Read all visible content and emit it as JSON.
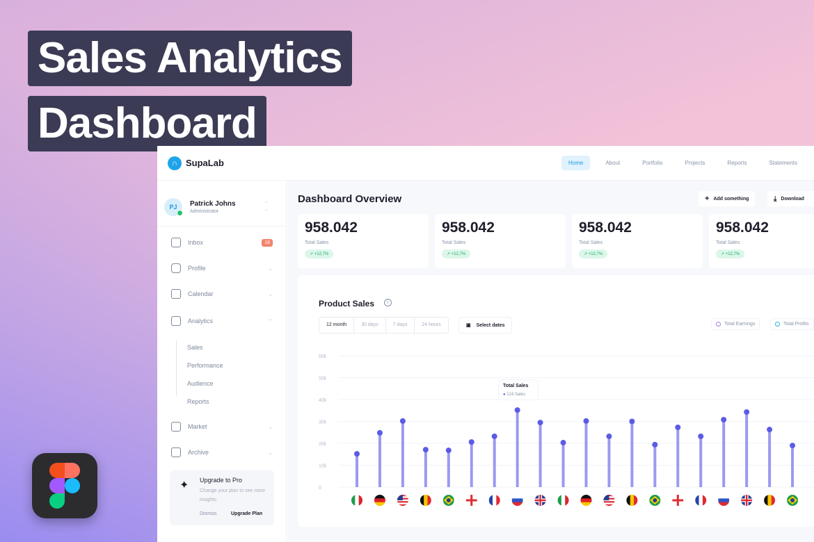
{
  "hero": {
    "line1": "Sales Analytics",
    "line2": "Dashboard"
  },
  "header": {
    "brand": "SupaLab",
    "nav": [
      "Home",
      "About",
      "Portfolio",
      "Projects",
      "Reports",
      "Statements"
    ],
    "active": "Home"
  },
  "user": {
    "initials": "PJ",
    "name": "Patrick Johns",
    "role": "Administrator",
    "status": "online"
  },
  "sidebar": {
    "items": [
      {
        "label": "Inbox",
        "icon": "inbox-icon",
        "badge": "16"
      },
      {
        "label": "Profile",
        "icon": "user-icon"
      },
      {
        "label": "Calendar",
        "icon": "calendar-icon"
      },
      {
        "label": "Analytics",
        "icon": "chart-icon",
        "expanded": true
      },
      {
        "label": "Market",
        "icon": "store-icon"
      },
      {
        "label": "Archive",
        "icon": "bookmark-icon"
      }
    ],
    "analytics_sub": [
      "Sales",
      "Performance",
      "Audience",
      "Reports"
    ],
    "upgrade": {
      "title": "Upgrade to Pro",
      "text": "Change your plan to see more insights.",
      "dismiss": "Dismiss",
      "action": "Upgrade Plan"
    }
  },
  "main": {
    "title": "Dashboard Overview",
    "add": "Add something",
    "download": "Download",
    "cards": [
      {
        "value": "958.042",
        "label": "Total Sales",
        "delta": "+12,7%"
      },
      {
        "value": "958.042",
        "label": "Total Sales",
        "delta": "+12,7%"
      },
      {
        "value": "958.042",
        "label": "Total Sales",
        "delta": "+12,7%"
      },
      {
        "value": "958.042",
        "label": "Total Sales",
        "delta": "+12,7%"
      }
    ]
  },
  "product_sales": {
    "title": "Product Sales",
    "ranges": [
      "12 month",
      "30 days",
      "7 days",
      "24 hours"
    ],
    "selected_range": "12 month",
    "select_dates": "Select dates",
    "legend": [
      {
        "label": "Total Earnings",
        "color": "#a77ee8"
      },
      {
        "label": "Total Profits",
        "color": "#2fb1ea"
      }
    ],
    "tooltip": {
      "title": "Total Sales",
      "value": "124 Sales"
    }
  },
  "colors": {
    "accent": "#5b5be6",
    "bar": "#9a9af0",
    "badge": "#f2846e",
    "nav_active": "#dff2fd"
  },
  "chart_data": {
    "type": "bar",
    "ylim": [
      0,
      60000
    ],
    "yticks": [
      "0",
      "10k",
      "20k",
      "30k",
      "40k",
      "50k",
      "60k"
    ],
    "grid": true,
    "categories": [
      "Italy",
      "Germany",
      "USA",
      "Belgium",
      "Brazil",
      "England",
      "France",
      "Russia",
      "UK",
      "Italy",
      "Germany",
      "USA",
      "Belgium",
      "Brazil",
      "England",
      "France",
      "Russia",
      "UK",
      "Belgium",
      "Brazil"
    ],
    "values": [
      15200,
      24800,
      30200,
      17100,
      16800,
      20600,
      23200,
      35200,
      29500,
      20300,
      30200,
      23200,
      30000,
      19400,
      27300,
      23200,
      30800,
      34300,
      26300,
      19000
    ]
  }
}
